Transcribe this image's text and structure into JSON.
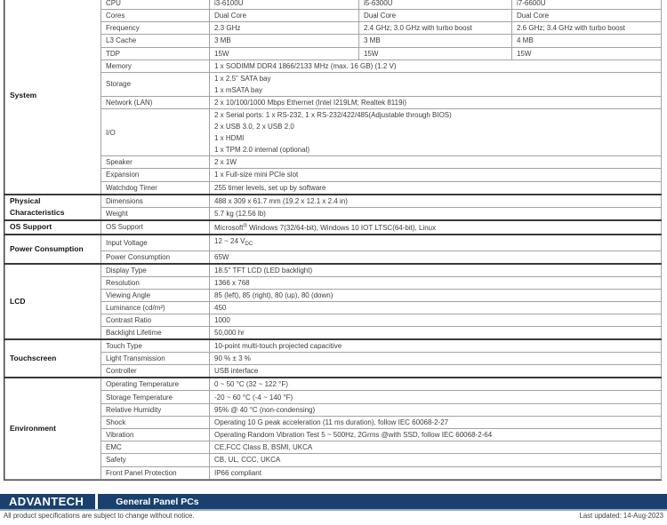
{
  "colors": {
    "bar_navy": "#1a406e",
    "bar_bottom_edge": "#8ea8c0",
    "group_border": "#3a3a3a",
    "inner_border": "#a3a3a3",
    "text": "#3d3d3d"
  },
  "spec_table": {
    "groups": [
      {
        "category": "System",
        "rows": [
          {
            "label": "CPU",
            "values": [
              "i3-6100U",
              "i5-6300U",
              "i7-6600U"
            ]
          },
          {
            "label": "Cores",
            "values": [
              "Dual Core",
              "Dual Core",
              "Dual Core"
            ]
          },
          {
            "label": "Frequency",
            "values": [
              "2.3 GHz",
              "2.4 GHz; 3.0 GHz with turbo boost",
              "2.6 GHz; 3.4 GHz with turbo boost"
            ]
          },
          {
            "label": "L3 Cache",
            "values": [
              "3 MB",
              "3 MB",
              "4 MB"
            ]
          },
          {
            "label": "TDP",
            "values": [
              "15W",
              "15W",
              "15W"
            ]
          },
          {
            "label": "Memory",
            "value": "1 x SODIMM DDR4 1866/2133 MHz (max. 16 GB) (1.2 V)"
          },
          {
            "label": "Storage",
            "value": [
              "1 x 2.5\" SATA bay",
              "1 x mSATA bay"
            ]
          },
          {
            "label": "Network (LAN)",
            "value": "2 x 10/100/1000 Mbps Ethernet (Intel I219LM; Realtek 8119i)"
          },
          {
            "label": "I/O",
            "value": [
              "2 x Serial ports: 1 x RS-232, 1 x RS-232/422/485(Adjustable through BIOS)",
              "2 x USB 3.0, 2 x USB 2.0",
              "1 x HDMI",
              "1 x TPM 2.0 internal (optional)"
            ]
          },
          {
            "label": "Speaker",
            "value": "2 x 1W"
          },
          {
            "label": "Expansion",
            "value": "1 x Full-size mini PCIe slot"
          },
          {
            "label": "Watchdog Timer",
            "value": "255 timer levels, set up by software"
          }
        ]
      },
      {
        "category": [
          "Physical",
          "Characteristics"
        ],
        "rows": [
          {
            "label": "Dimensions",
            "value": "488 x 309 x 61.7 mm (19.2 x 12.1 x 2.4 in)"
          },
          {
            "label": "Weight",
            "value": "5.7 kg (12.56 lb)"
          }
        ]
      },
      {
        "category": "OS Support",
        "rows": [
          {
            "label": "OS Support",
            "value": "Microsoft^®^ Windows 7(32/64-bit), Windows 10 IOT LTSC(64-bit), Linux"
          }
        ]
      },
      {
        "category": "Power Consumption",
        "rows": [
          {
            "label": "Input Voltage",
            "value": "12 ~ 24 V~DC~"
          },
          {
            "label": "Power Consumption",
            "value": "65W"
          }
        ]
      },
      {
        "category": "LCD",
        "rows": [
          {
            "label": "Display Type",
            "value": "18.5\" TFT LCD (LED backlight)"
          },
          {
            "label": "Resolution",
            "value": "1366 x 768"
          },
          {
            "label": "Viewing Angle",
            "value": "85 (left), 85 (right), 80 (up), 80 (down)"
          },
          {
            "label": "Luminance (cd/m²)",
            "value": "450"
          },
          {
            "label": "Contrast Ratio",
            "value": "1000"
          },
          {
            "label": "Backlight Lifetime",
            "value": "50,000 hr"
          }
        ]
      },
      {
        "category": "Touchscreen",
        "rows": [
          {
            "label": "Touch Type",
            "value": "10-point multi-touch projected capacitive"
          },
          {
            "label": "Light Transmission",
            "value": "90 % ± 3 %"
          },
          {
            "label": "Controller",
            "value": "USB interface"
          }
        ]
      },
      {
        "category": "Environment",
        "rows": [
          {
            "label": "Operating Temperature",
            "value": "0 ~ 50 °C (32 ~ 122 °F)"
          },
          {
            "label": "Storage Temperature",
            "value": "-20 ~ 60 °C (-4 ~ 140 °F)"
          },
          {
            "label": "Relative Humidity",
            "value": "95% @ 40 °C (non-condensing)"
          },
          {
            "label": "Shock",
            "value": "Operating 10 G peak acceleration (11 ms duration), follow IEC 60068-2-27"
          },
          {
            "label": "Vibration",
            "value": "Operating Random Vibration Test 5 ~ 500Hz, 2Grms @with SSD, follow IEC 60068-2-64"
          },
          {
            "label": "EMC",
            "value": "CE,FCC Class B, BSMI, UKCA"
          },
          {
            "label": "Safety",
            "value": "CB, UL, CCC, UKCA"
          },
          {
            "label": "Front Panel Protection",
            "value": "IP66 compliant"
          }
        ]
      }
    ]
  },
  "footer": {
    "brand": "ADVANTECH",
    "series_title": "General Panel PCs",
    "disclaimer": "All product specifications are subject to change without notice.",
    "last_updated": "Last updated: 14-Aug-2023"
  }
}
